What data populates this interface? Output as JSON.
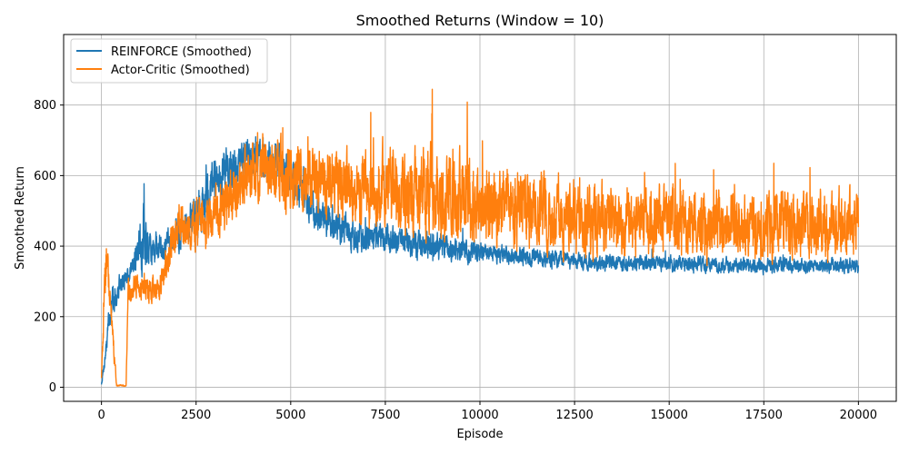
{
  "chart_data": {
    "type": "line",
    "title": "Smoothed Returns (Window = 10)",
    "xlabel": "Episode",
    "ylabel": "Smoothed Return",
    "xlim": [
      -1000,
      21000
    ],
    "ylim": [
      -40,
      1000
    ],
    "xticks": [
      0,
      2500,
      5000,
      7500,
      10000,
      12500,
      15000,
      17500,
      20000
    ],
    "yticks": [
      0,
      200,
      400,
      600,
      800
    ],
    "grid": true,
    "legend_position": "top-left",
    "series": [
      {
        "name": "REINFORCE (Smoothed)",
        "color": "#1f77b4",
        "profile": {
          "x": [
            0,
            100,
            200,
            300,
            400,
            600,
            800,
            950,
            1100,
            1300,
            1600,
            2000,
            2500,
            3000,
            3500,
            4000,
            4500,
            5000,
            5500,
            6000,
            7000,
            8000,
            9000,
            10000,
            11000,
            12000,
            13000,
            14000,
            15000,
            16000,
            17000,
            18000,
            19000,
            20000
          ],
          "center": [
            10,
            90,
            190,
            240,
            270,
            300,
            340,
            380,
            430,
            390,
            400,
            430,
            490,
            580,
            640,
            660,
            640,
            600,
            520,
            470,
            420,
            410,
            395,
            380,
            370,
            360,
            355,
            350,
            350,
            345,
            345,
            345,
            345,
            345
          ],
          "spread": [
            10,
            40,
            60,
            70,
            60,
            50,
            50,
            90,
            170,
            70,
            60,
            70,
            100,
            130,
            110,
            90,
            90,
            90,
            90,
            80,
            70,
            70,
            60,
            50,
            40,
            40,
            35,
            35,
            35,
            35,
            35,
            35,
            35,
            35
          ]
        }
      },
      {
        "name": "Actor-Critic (Smoothed)",
        "color": "#ff7f0e",
        "profile": {
          "x": [
            0,
            100,
            150,
            250,
            300,
            400,
            650,
            700,
            900,
            1200,
            1500,
            1800,
            2000,
            2500,
            3000,
            3500,
            4000,
            5000,
            6000,
            7000,
            8000,
            9000,
            10000,
            11000,
            12000,
            13000,
            14000,
            15000,
            16000,
            17000,
            18000,
            19000,
            20000
          ],
          "center": [
            30,
            300,
            420,
            220,
            120,
            5,
            5,
            260,
            290,
            280,
            280,
            390,
            470,
            450,
            480,
            560,
            620,
            600,
            580,
            560,
            560,
            550,
            530,
            510,
            490,
            480,
            470,
            470,
            460,
            460,
            460,
            460,
            460
          ],
          "spread": [
            20,
            150,
            130,
            90,
            80,
            3,
            3,
            60,
            60,
            60,
            60,
            90,
            110,
            110,
            120,
            140,
            130,
            150,
            160,
            170,
            190,
            200,
            190,
            180,
            170,
            160,
            150,
            150,
            150,
            150,
            150,
            150,
            150
          ]
        }
      }
    ]
  }
}
